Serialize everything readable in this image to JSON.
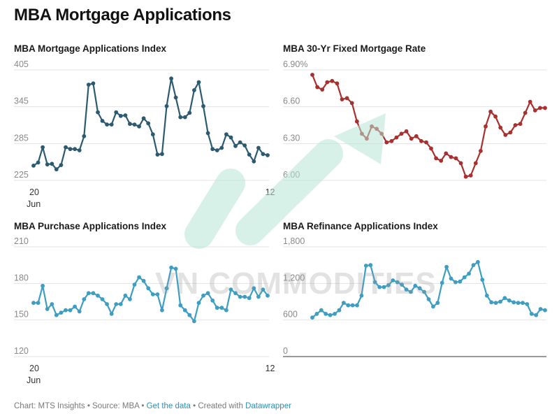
{
  "page": {
    "title": "MBA Mortgage Applications"
  },
  "colors": {
    "index": "#2c5b70",
    "rate": "#a8302e",
    "purchase": "#3e9ec2",
    "refinance": "#3e9ec2",
    "grid": "#e3e3e3",
    "watermark": "#b8e6d6"
  },
  "watermark": {
    "text": "VN COMMODITIES",
    "icon": "upward-arrow-logo-icon"
  },
  "chart_data": [
    {
      "id": "index",
      "type": "line",
      "title": "MBA Mortgage Applications Index",
      "ylim": [
        225,
        405
      ],
      "yticks": [
        "405",
        "345",
        "285",
        "225"
      ],
      "ytick_values": [
        405,
        345,
        285,
        225
      ],
      "xticks": [
        {
          "i": 0,
          "label": "20",
          "sub": "Jun"
        },
        {
          "i": 52,
          "label": "12",
          "sub": ""
        }
      ],
      "values": [
        249,
        254,
        279,
        251,
        252,
        243,
        250,
        279,
        276,
        276,
        274,
        297,
        381,
        383,
        336,
        322,
        316,
        316,
        336,
        330,
        331,
        317,
        316,
        313,
        326,
        318,
        300,
        267,
        268,
        346,
        391,
        360,
        328,
        328,
        335,
        372,
        385,
        346,
        302,
        276,
        274,
        278,
        300,
        295,
        281,
        287,
        282,
        267,
        256,
        278,
        268,
        266
      ]
    },
    {
      "id": "rate",
      "type": "line",
      "title": "MBA 30-Yr Fixed Mortgage Rate",
      "ylim": [
        6.0,
        6.9
      ],
      "yticks": [
        "6.90%",
        "6.60",
        "6.30",
        "6.00"
      ],
      "ytick_values": [
        6.9,
        6.6,
        6.3,
        6.0
      ],
      "xticks": [],
      "values": [
        6.86,
        6.76,
        6.74,
        6.8,
        6.81,
        6.79,
        6.66,
        6.67,
        6.63,
        6.48,
        6.38,
        6.34,
        6.44,
        6.42,
        6.38,
        6.31,
        6.32,
        6.35,
        6.38,
        6.4,
        6.34,
        6.36,
        6.32,
        6.31,
        6.26,
        6.18,
        6.16,
        6.22,
        6.19,
        6.18,
        6.14,
        6.03,
        6.04,
        6.14,
        6.24,
        6.44,
        6.56,
        6.52,
        6.43,
        6.37,
        6.39,
        6.45,
        6.46,
        6.55,
        6.64,
        6.57,
        6.59,
        6.59
      ]
    },
    {
      "id": "purchase",
      "type": "line",
      "title": "MBA Purchase Applications Index",
      "ylim": [
        120,
        210
      ],
      "yticks": [
        "210",
        "180",
        "150",
        "120"
      ],
      "ytick_values": [
        210,
        180,
        150,
        120
      ],
      "xticks": [
        {
          "i": 0,
          "label": "20",
          "sub": "Jun"
        },
        {
          "i": 52,
          "label": "12",
          "sub": ""
        }
      ],
      "values": [
        164,
        164,
        178,
        159,
        163,
        154,
        156,
        158,
        158,
        161,
        157,
        167,
        172,
        172,
        170,
        167,
        163,
        155,
        163,
        163,
        170,
        167,
        179,
        185,
        182,
        176,
        171,
        171,
        158,
        176,
        193,
        192,
        162,
        158,
        154,
        149,
        164,
        170,
        172,
        166,
        160,
        160,
        158,
        175,
        172,
        169,
        169,
        168,
        176,
        169,
        175,
        170
      ]
    },
    {
      "id": "refinance",
      "type": "line",
      "title": "MBA Refinance Applications Index",
      "ylim": [
        0,
        1800
      ],
      "yticks": [
        "1,800",
        "1,200",
        "600",
        "0"
      ],
      "ytick_values": [
        1800,
        1200,
        600,
        0
      ],
      "xticks": [],
      "values": [
        640,
        700,
        760,
        700,
        680,
        700,
        760,
        880,
        840,
        840,
        840,
        1000,
        1490,
        1500,
        1220,
        1140,
        1140,
        1170,
        1250,
        1220,
        1180,
        1100,
        1060,
        1160,
        1120,
        1060,
        940,
        820,
        880,
        1210,
        1470,
        1280,
        1220,
        1230,
        1300,
        1360,
        1500,
        1550,
        1260,
        1000,
        890,
        880,
        900,
        960,
        920,
        890,
        880,
        880,
        860,
        700,
        680,
        780,
        760
      ]
    }
  ],
  "footer": {
    "chart": "Chart: MTS Insights",
    "source": "Source: MBA",
    "get_data": "Get the data",
    "created_with_prefix": "Created with",
    "tool": "Datawrapper",
    "sep": " • "
  }
}
